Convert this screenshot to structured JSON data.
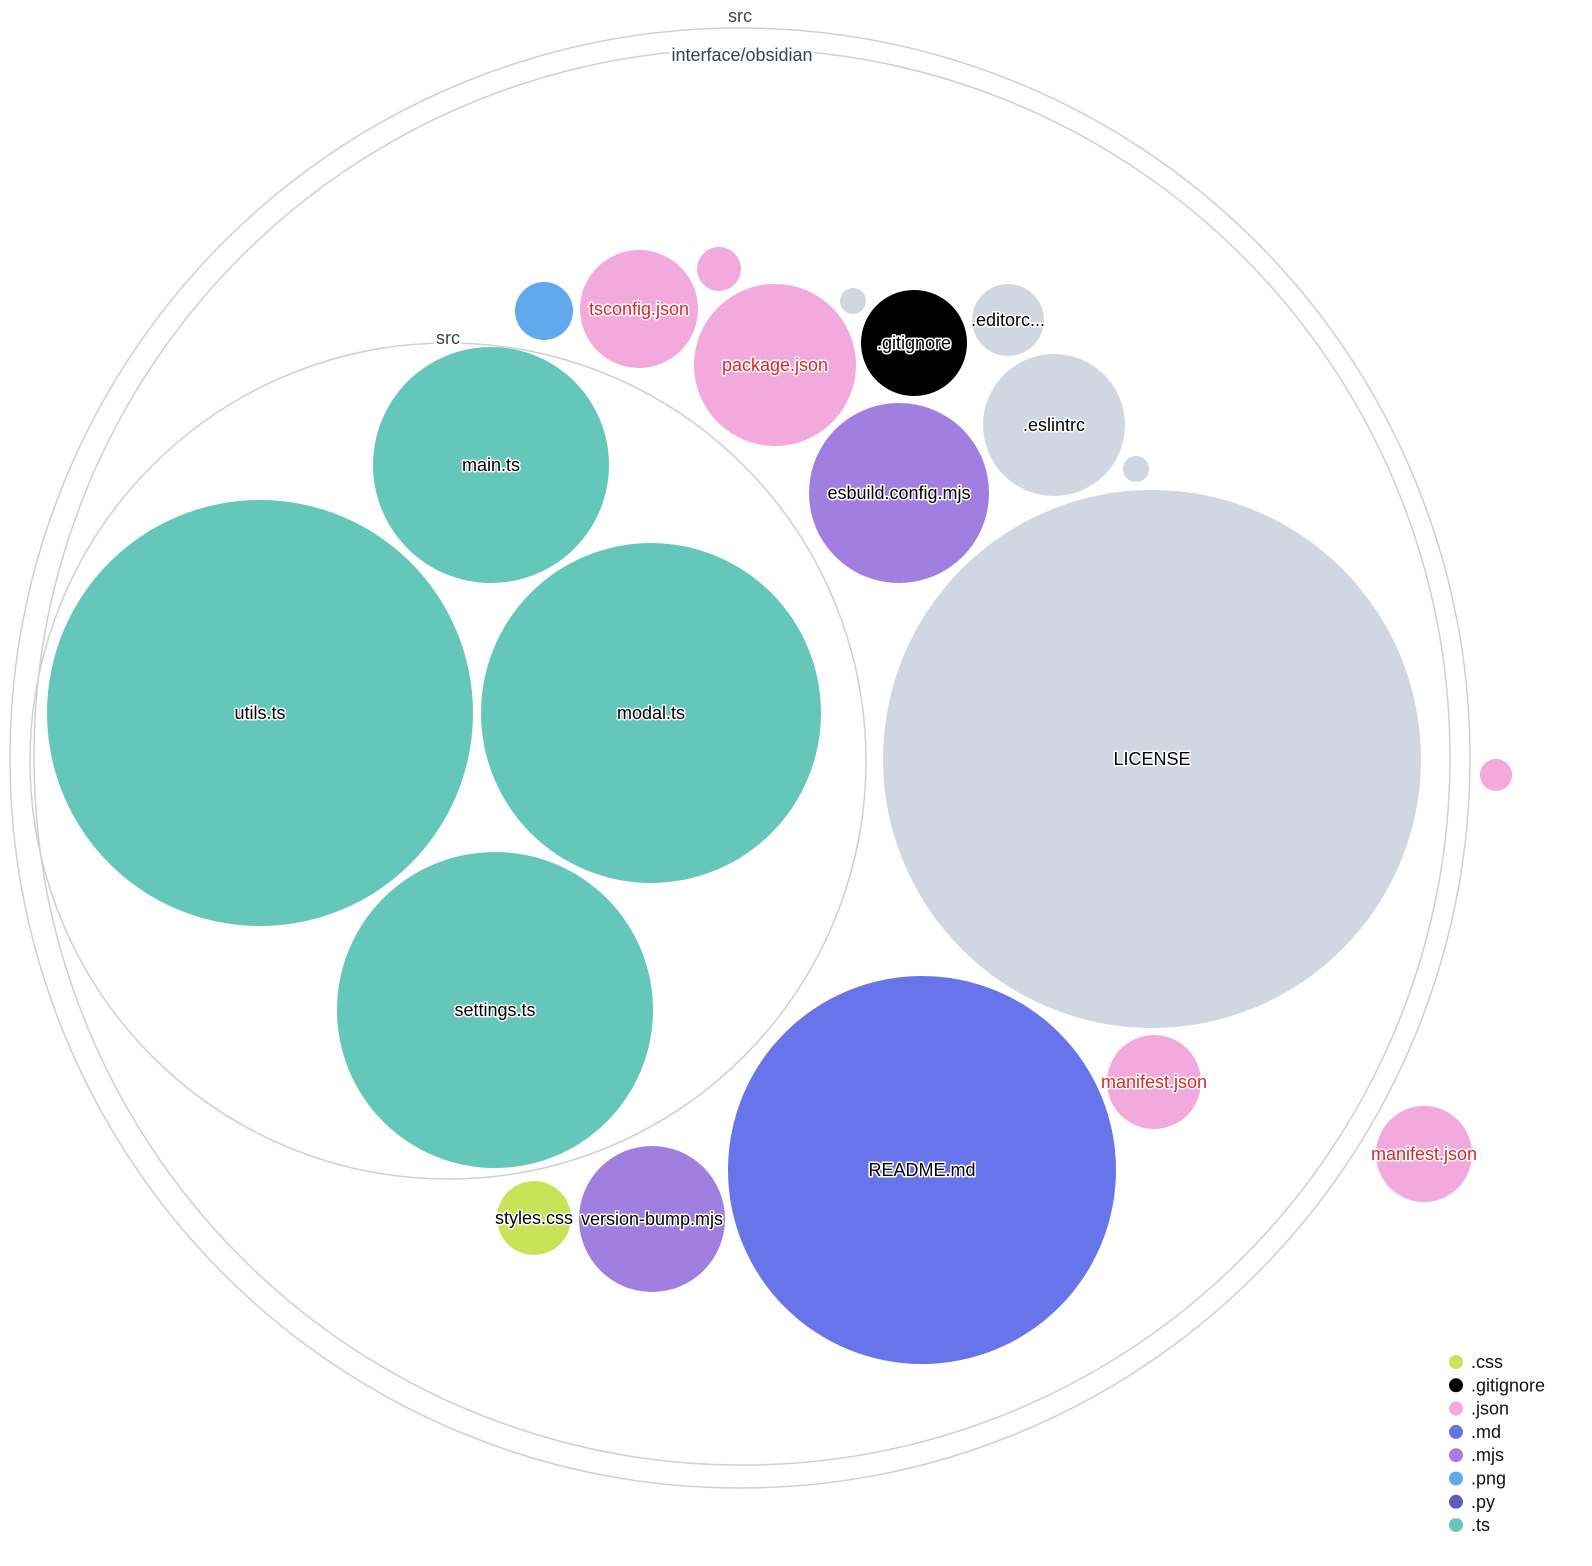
{
  "folders": [
    {
      "name": "src"
    },
    {
      "name": "interface/obsidian"
    },
    {
      "name": "src"
    }
  ],
  "files": [
    {
      "label": "main.ts",
      "ext": ".ts"
    },
    {
      "label": "utils.ts",
      "ext": ".ts"
    },
    {
      "label": "modal.ts",
      "ext": ".ts"
    },
    {
      "label": "settings.ts",
      "ext": ".ts"
    },
    {
      "label": "LICENSE",
      "ext": ""
    },
    {
      "label": "README.md",
      "ext": ".md"
    },
    {
      "label": "esbuild.config.mjs",
      "ext": ".mjs"
    },
    {
      "label": ".eslintrc",
      "ext": ""
    },
    {
      "label": ".gitignore",
      "ext": ".gitignore"
    },
    {
      "label": ".editorc...",
      "ext": ""
    },
    {
      "label": "package.json",
      "ext": ".json",
      "highlight": true
    },
    {
      "label": "tsconfig.json",
      "ext": ".json",
      "highlight": true
    },
    {
      "label": "",
      "ext": ".png"
    },
    {
      "label": "",
      "ext": ".json"
    },
    {
      "label": "",
      "ext": ""
    },
    {
      "label": "",
      "ext": ""
    },
    {
      "label": "manifest.json",
      "ext": ".json",
      "highlight": true
    },
    {
      "label": "manifest.json",
      "ext": ".json",
      "highlight": true
    },
    {
      "label": "",
      "ext": ".json"
    },
    {
      "label": "styles.css",
      "ext": ".css"
    },
    {
      "label": "version-bump.mjs",
      "ext": ".mjs"
    }
  ],
  "colors": {
    ".css": "#c9e358",
    ".gitignore": "#000000",
    ".json": "#f1aadb",
    ".md": "#6874ea",
    ".mjs": "#a07fe0",
    ".png": "#61a9ec",
    ".py": "#5b5fb5",
    ".ts": "#64c7b9",
    "": "#d1d7e0",
    "highlight_text": "#d62828"
  },
  "legend": [
    {
      "label": ".css",
      "color": "#c9e358"
    },
    {
      "label": ".gitignore",
      "color": "#000000"
    },
    {
      "label": ".json",
      "color": "#f1aadb"
    },
    {
      "label": ".md",
      "color": "#6874ea"
    },
    {
      "label": ".mjs",
      "color": "#a07fe0"
    },
    {
      "label": ".png",
      "color": "#61a9ec"
    },
    {
      "label": ".py",
      "color": "#5b5fb5"
    },
    {
      "label": ".ts",
      "color": "#64c7b9"
    }
  ]
}
